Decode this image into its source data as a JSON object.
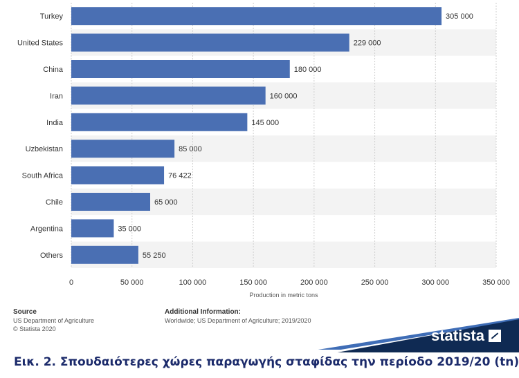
{
  "chart_data": {
    "type": "bar",
    "orientation": "horizontal",
    "categories": [
      "Turkey",
      "United States",
      "China",
      "Iran",
      "India",
      "Uzbekistan",
      "South Africa",
      "Chile",
      "Argentina",
      "Others"
    ],
    "values": [
      305000,
      229000,
      180000,
      160000,
      145000,
      85000,
      76422,
      65000,
      35000,
      55250
    ],
    "value_labels": [
      "305 000",
      "229 000",
      "180 000",
      "160 000",
      "145 000",
      "85 000",
      "76 422",
      "65 000",
      "35 000",
      "55 250"
    ],
    "xlabel": "Production in metric tons",
    "xlim": [
      0,
      350000
    ],
    "xticks": [
      0,
      50000,
      100000,
      150000,
      200000,
      250000,
      300000,
      350000
    ],
    "xtick_labels": [
      "0",
      "50 000",
      "100 000",
      "150 000",
      "200 000",
      "250 000",
      "300 000",
      "350 000"
    ],
    "grid": true,
    "bar_color": "#4a6fb3"
  },
  "footer": {
    "source_title": "Source",
    "source_line1": "US Department of Agriculture",
    "source_line2": "© Statista 2020",
    "info_title": "Additional Information:",
    "info_text": "Worldwide; US Department of Agriculture; 2019/2020",
    "brand": "statista"
  },
  "caption": "Εικ. 2. Σπουδαιότερες χώρες παραγωγής σταφίδας την περίοδο 2019/20 (tn)"
}
